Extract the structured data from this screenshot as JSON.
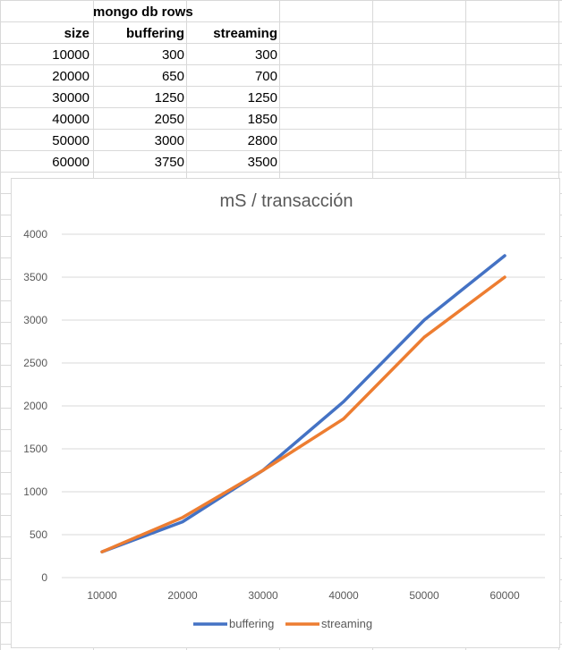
{
  "sheet": {
    "header_title": "mongo db rows",
    "columns": [
      "size",
      "buffering",
      "streaming"
    ],
    "rows": [
      [
        "10000",
        "300",
        "300"
      ],
      [
        "20000",
        "650",
        "700"
      ],
      [
        "30000",
        "1250",
        "1250"
      ],
      [
        "40000",
        "2050",
        "1850"
      ],
      [
        "50000",
        "3000",
        "2800"
      ],
      [
        "60000",
        "3750",
        "3500"
      ]
    ]
  },
  "chart_data": {
    "type": "line",
    "title": "mS / transacción",
    "categories": [
      "10000",
      "20000",
      "30000",
      "40000",
      "50000",
      "60000"
    ],
    "series": [
      {
        "name": "buffering",
        "values": [
          300,
          650,
          1250,
          2050,
          3000,
          3750
        ],
        "color": "#4472c4"
      },
      {
        "name": "streaming",
        "values": [
          300,
          700,
          1250,
          1850,
          2800,
          3500
        ],
        "color": "#ed7d31"
      }
    ],
    "ylim": [
      0,
      4000
    ],
    "yticks": [
      0,
      500,
      1000,
      1500,
      2000,
      2500,
      3000,
      3500,
      4000
    ],
    "grid": true,
    "legend": "bottom"
  }
}
